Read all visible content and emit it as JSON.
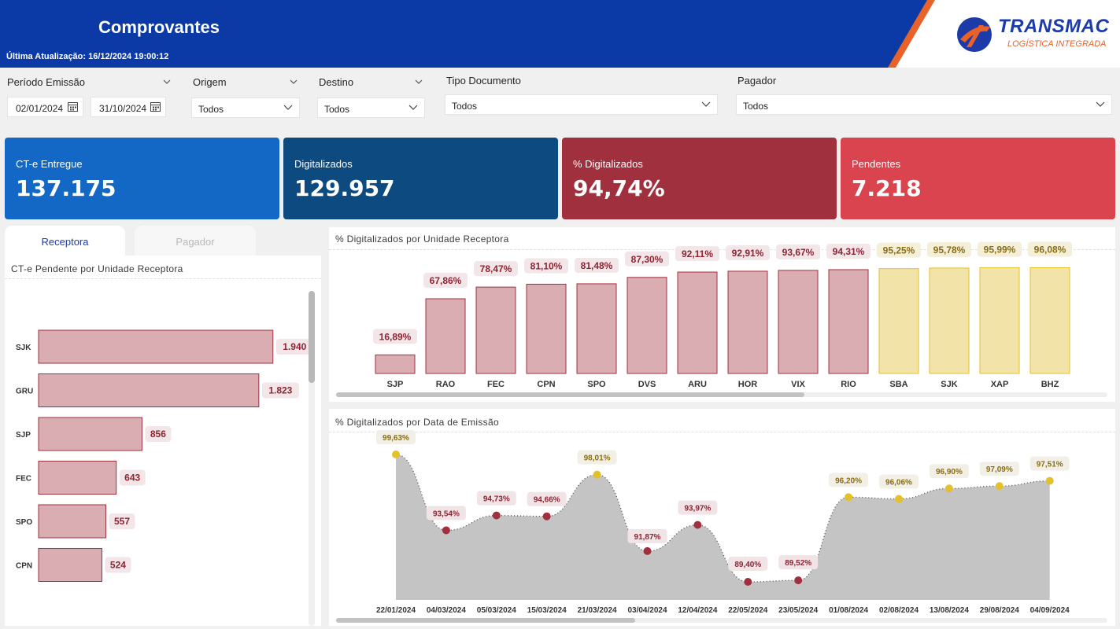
{
  "header": {
    "title": "Comprovantes",
    "last_update": "Última Atualização: 16/12/2024 19:00:12",
    "logo_name": "TRANSMAC",
    "logo_subtitle": "LOGÍSTICA INTEGRADA",
    "colors": {
      "bar": "#0b3aa6",
      "accent": "#e8622a"
    }
  },
  "filters": {
    "periodo": {
      "label": "Período Emissão",
      "start": "02/01/2024",
      "end": "31/10/2024"
    },
    "origem": {
      "label": "Origem",
      "value": "Todos"
    },
    "destino": {
      "label": "Destino",
      "value": "Todos"
    },
    "tipo_documento": {
      "label": "Tipo Documento",
      "value": "Todos"
    },
    "pagador": {
      "label": "Pagador",
      "value": "Todos"
    }
  },
  "kpis": [
    {
      "label": "CT-e Entregue",
      "value": "137.175",
      "color": "#1268c4"
    },
    {
      "label": "Digitalizados",
      "value": "129.957",
      "color": "#0d4a80"
    },
    {
      "label": "% Digitalizados",
      "value": "94,74%",
      "color": "#a0303e"
    },
    {
      "label": "Pendentes",
      "value": "7.218",
      "color": "#d9444f"
    }
  ],
  "tabs": {
    "receptora": "Receptora",
    "pagador": "Pagador",
    "active": "receptora"
  },
  "pending_chart": {
    "title": "CT-e Pendente por Unidade Receptora",
    "chart_data": {
      "type": "bar",
      "orientation": "horizontal",
      "categories": [
        "SJK",
        "GRU",
        "SJP",
        "FEC",
        "SPO",
        "CPN"
      ],
      "values": [
        1940,
        1823,
        856,
        643,
        557,
        524
      ],
      "labels": [
        "1.940",
        "1.823",
        "856",
        "643",
        "557",
        "524"
      ]
    }
  },
  "unit_chart": {
    "title": "% Digitalizados por Unidade Receptora",
    "chart_data": {
      "type": "bar",
      "categories": [
        "SJP",
        "RAO",
        "FEC",
        "CPN",
        "SPO",
        "DVS",
        "ARU",
        "HOR",
        "VIX",
        "RIO",
        "SBA",
        "SJK",
        "XAP",
        "BHZ"
      ],
      "values": [
        16.89,
        67.86,
        78.47,
        81.1,
        81.48,
        87.3,
        92.11,
        92.91,
        93.67,
        94.31,
        95.25,
        95.78,
        95.99,
        96.08
      ],
      "labels": [
        "16,89%",
        "67,86%",
        "78,47%",
        "81,10%",
        "81,48%",
        "87,30%",
        "92,11%",
        "92,91%",
        "93,67%",
        "94,31%",
        "95,25%",
        "95,78%",
        "95,99%",
        "96,08%"
      ],
      "highlight_threshold": 95,
      "colors": {
        "low": "#d9adb1",
        "high": "#f2e4a8",
        "low_label": "#8e2333",
        "high_label": "#8a6d12"
      }
    }
  },
  "date_chart": {
    "title": "% Digitalizados por Data de Emissão",
    "chart_data": {
      "type": "area",
      "x": [
        "22/01/2024",
        "04/03/2024",
        "05/03/2024",
        "15/03/2024",
        "21/03/2024",
        "03/04/2024",
        "12/04/2024",
        "22/05/2024",
        "23/05/2024",
        "01/08/2024",
        "02/08/2024",
        "13/08/2024",
        "29/08/2024",
        "04/09/2024"
      ],
      "values": [
        99.63,
        93.54,
        94.73,
        94.66,
        98.01,
        91.87,
        93.97,
        89.4,
        89.52,
        96.2,
        96.06,
        96.9,
        97.09,
        97.51
      ],
      "labels": [
        "99,63%",
        "93,54%",
        "94,73%",
        "94,66%",
        "98,01%",
        "91,87%",
        "93,97%",
        "89,40%",
        "89,52%",
        "96,20%",
        "96,06%",
        "96,90%",
        "97,09%",
        "97,51%"
      ],
      "highlight_threshold": 95,
      "colors": {
        "area": "#c4c4c4",
        "low": "#a0303e",
        "high": "#e3c12c"
      }
    }
  }
}
